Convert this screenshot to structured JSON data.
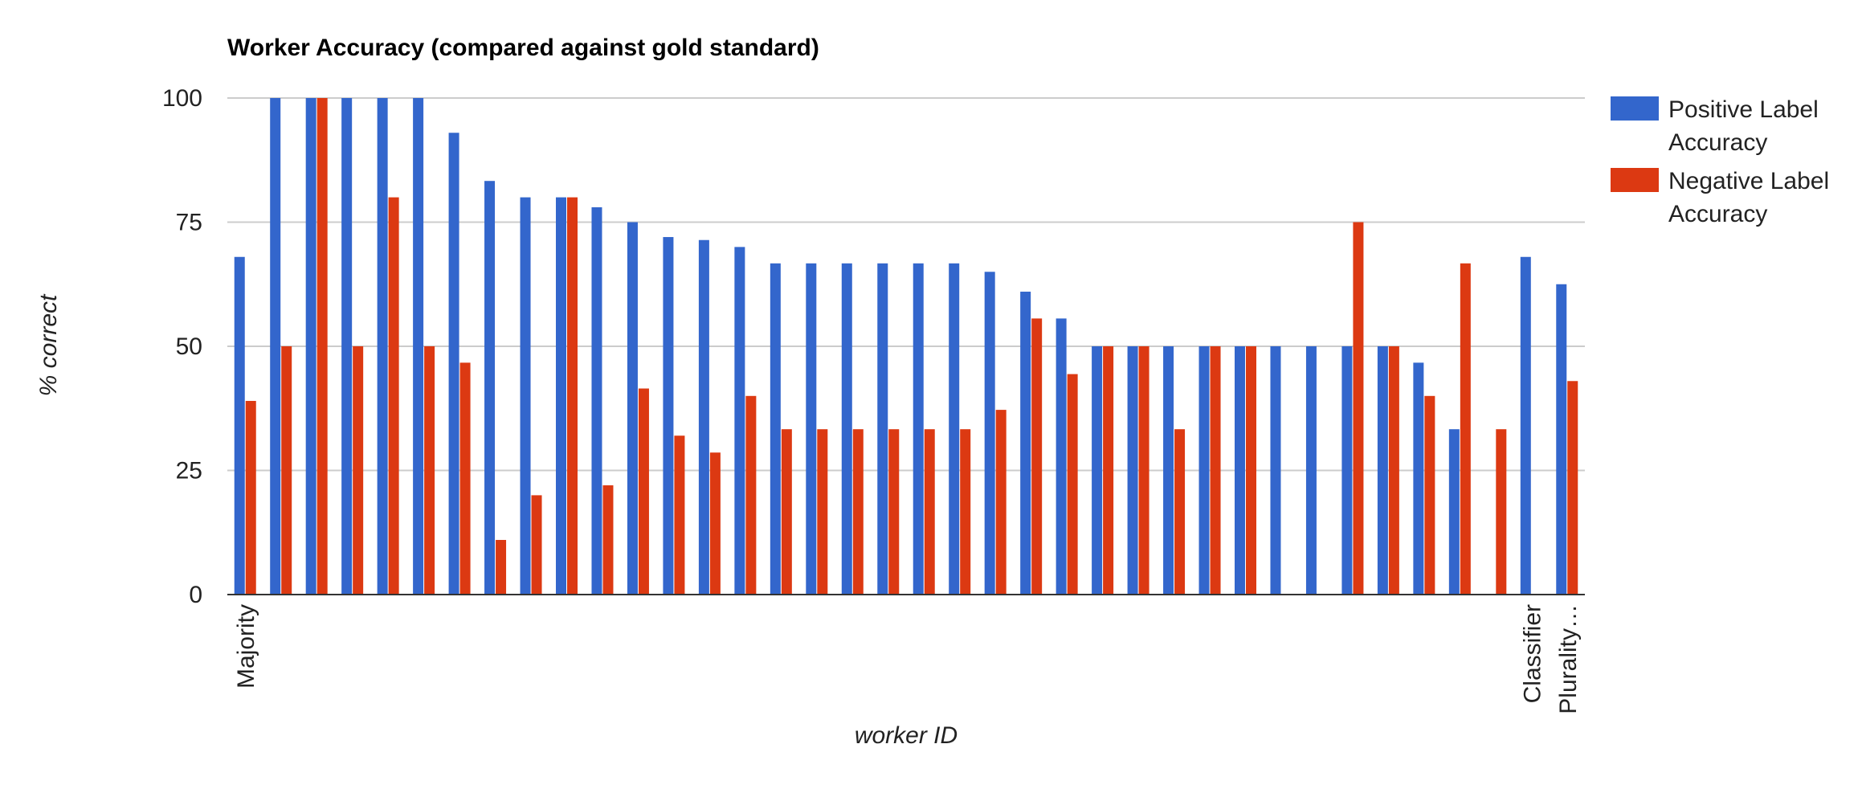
{
  "chart_data": {
    "type": "bar",
    "title": "Worker Accuracy (compared against gold standard)",
    "xlabel": "worker ID",
    "ylabel": "% correct",
    "ylim": [
      0,
      100
    ],
    "yticks": [
      0,
      25,
      50,
      75,
      100
    ],
    "grid": true,
    "legend_position": "right",
    "categories": [
      "Majority",
      "",
      "",
      "",
      "",
      "",
      "",
      "",
      "",
      "",
      "",
      "",
      "",
      "",
      "",
      "",
      "",
      "",
      "",
      "",
      "",
      "",
      "",
      "",
      "",
      "",
      "",
      "",
      "",
      "",
      "",
      "",
      "",
      "",
      "",
      "",
      "Classifier",
      "Plurality…"
    ],
    "series": [
      {
        "name": "Positive Label Accuracy",
        "color": "#3366cc",
        "values": [
          68,
          100,
          100,
          100,
          100,
          100,
          93,
          83.3,
          80,
          80,
          78,
          75,
          72,
          71.4,
          70,
          66.7,
          66.7,
          66.7,
          66.7,
          66.7,
          66.7,
          65,
          61,
          55.6,
          50,
          50,
          50,
          50,
          50,
          50,
          50,
          50,
          50,
          46.7,
          33.3,
          0,
          68,
          62.5
        ]
      },
      {
        "name": "Negative Label Accuracy",
        "color": "#dc3912",
        "values": [
          39,
          50,
          100,
          50,
          80,
          50,
          46.7,
          11,
          20,
          80,
          22,
          41.5,
          32,
          28.6,
          40,
          33.3,
          33.3,
          33.3,
          33.3,
          33.3,
          33.3,
          37.2,
          55.6,
          44.4,
          50,
          50,
          33.3,
          50,
          50,
          0,
          0,
          75,
          50,
          40,
          66.7,
          33.3,
          0,
          43
        ]
      }
    ]
  }
}
